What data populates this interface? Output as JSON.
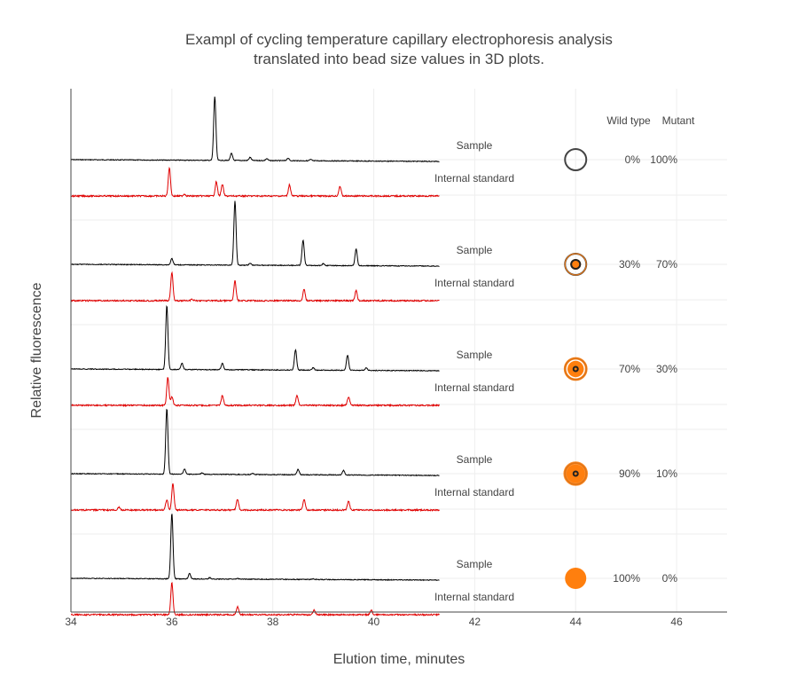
{
  "chart_data": {
    "type": "line",
    "title_lines": [
      "Exampl of cycling temperature capillary electrophoresis analysis",
      "translated into bead size values in 3D plots."
    ],
    "xlabel": "Elution time, minutes",
    "ylabel": "Relative fluorescence",
    "xlim": [
      34,
      47
    ],
    "xticks": [
      34,
      36,
      38,
      40,
      42,
      44,
      46
    ],
    "grid": true,
    "header": {
      "wild_type": "Wild type",
      "mutant": "Mutant"
    },
    "trace_labels": {
      "sample": "Sample",
      "standard": "Internal standard"
    },
    "colors": {
      "sample": "#000000",
      "standard": "#e00000",
      "circle_fill": "#ff7f0e",
      "circle_edge": "#444444"
    },
    "trace_x_range": [
      34,
      41.3
    ],
    "marker_x": 44,
    "groups": [
      {
        "wild_type": "0%",
        "mutant": "100%",
        "sample_peaks": [
          [
            36.85,
            1.0
          ],
          [
            37.18,
            0.11
          ],
          [
            37.55,
            0.05
          ],
          [
            37.88,
            0.03
          ],
          [
            38.3,
            0.04
          ],
          [
            38.75,
            0.02
          ]
        ],
        "standard_peaks": [
          [
            35.95,
            1.0
          ],
          [
            36.25,
            0.07
          ],
          [
            36.88,
            0.5
          ],
          [
            37.0,
            0.4
          ],
          [
            38.33,
            0.4
          ],
          [
            39.33,
            0.35
          ]
        ],
        "mutant_fraction": 1.0
      },
      {
        "wild_type": "30%",
        "mutant": "70%",
        "sample_peaks": [
          [
            36.0,
            0.1
          ],
          [
            37.25,
            1.0
          ],
          [
            37.55,
            0.03
          ],
          [
            38.6,
            0.4
          ],
          [
            39.0,
            0.03
          ],
          [
            39.65,
            0.26
          ]
        ],
        "standard_peaks": [
          [
            36.0,
            1.0
          ],
          [
            36.4,
            0.05
          ],
          [
            37.25,
            0.7
          ],
          [
            38.62,
            0.4
          ],
          [
            39.65,
            0.35
          ]
        ],
        "mutant_fraction": 0.7
      },
      {
        "wild_type": "70%",
        "mutant": "30%",
        "sample_peaks": [
          [
            35.9,
            1.0
          ],
          [
            36.2,
            0.1
          ],
          [
            37.0,
            0.1
          ],
          [
            38.45,
            0.32
          ],
          [
            38.8,
            0.04
          ],
          [
            39.48,
            0.24
          ],
          [
            39.85,
            0.04
          ]
        ],
        "standard_peaks": [
          [
            35.92,
            1.0
          ],
          [
            36.0,
            0.3
          ],
          [
            37.0,
            0.35
          ],
          [
            38.48,
            0.35
          ],
          [
            39.5,
            0.3
          ]
        ],
        "mutant_fraction": 0.3
      },
      {
        "wild_type": "90%",
        "mutant": "10%",
        "sample_peaks": [
          [
            35.9,
            1.0
          ],
          [
            36.25,
            0.08
          ],
          [
            36.6,
            0.02
          ],
          [
            37.6,
            0.02
          ],
          [
            38.5,
            0.08
          ],
          [
            39.4,
            0.07
          ]
        ],
        "standard_peaks": [
          [
            34.95,
            0.1
          ],
          [
            35.9,
            0.4
          ],
          [
            36.02,
            1.0
          ],
          [
            37.3,
            0.4
          ],
          [
            38.62,
            0.4
          ],
          [
            39.5,
            0.35
          ]
        ],
        "mutant_fraction": 0.1
      },
      {
        "wild_type": "100%",
        "mutant": "0%",
        "sample_peaks": [
          [
            36.0,
            1.0
          ],
          [
            36.35,
            0.08
          ],
          [
            36.75,
            0.02
          ],
          [
            37.3,
            0.01
          ],
          [
            38.8,
            0.01
          ]
        ],
        "standard_peaks": [
          [
            36.0,
            1.0
          ],
          [
            37.3,
            0.25
          ],
          [
            38.82,
            0.15
          ],
          [
            39.95,
            0.15
          ]
        ],
        "mutant_fraction": 0.0
      }
    ]
  }
}
